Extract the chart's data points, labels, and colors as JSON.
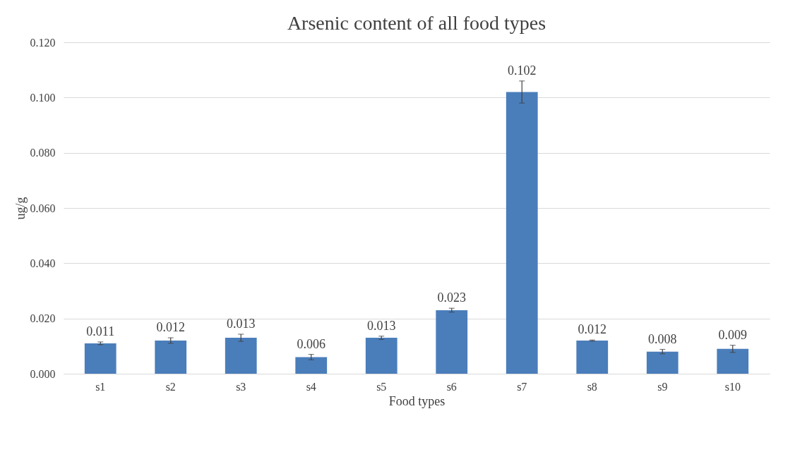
{
  "chart_data": {
    "type": "bar",
    "title": "Arsenic content of all food types",
    "xlabel": "Food types",
    "ylabel": "ug/g",
    "categories": [
      "s1",
      "s2",
      "s3",
      "s4",
      "s5",
      "s6",
      "s7",
      "s8",
      "s9",
      "s10"
    ],
    "values": [
      0.011,
      0.012,
      0.013,
      0.006,
      0.013,
      0.023,
      0.102,
      0.012,
      0.008,
      0.009
    ],
    "value_labels": [
      "0.011",
      "0.012",
      "0.013",
      "0.006",
      "0.013",
      "0.023",
      "0.102",
      "0.012",
      "0.008",
      "0.009"
    ],
    "errors": [
      0.0005,
      0.001,
      0.0013,
      0.001,
      0.0006,
      0.0007,
      0.004,
      0.0002,
      0.0008,
      0.0013
    ],
    "color": "#4a7ebb",
    "ylim": [
      0,
      0.12
    ],
    "yticks": [
      {
        "value": 0,
        "label": "0.000"
      },
      {
        "value": 0.02,
        "label": "0.020"
      },
      {
        "value": 0.04,
        "label": "0.040"
      },
      {
        "value": 0.06,
        "label": "0.060"
      },
      {
        "value": 0.08,
        "label": "0.080"
      },
      {
        "value": 0.1,
        "label": "0.100"
      },
      {
        "value": 0.12,
        "label": "0.120"
      }
    ],
    "grid": "y"
  }
}
